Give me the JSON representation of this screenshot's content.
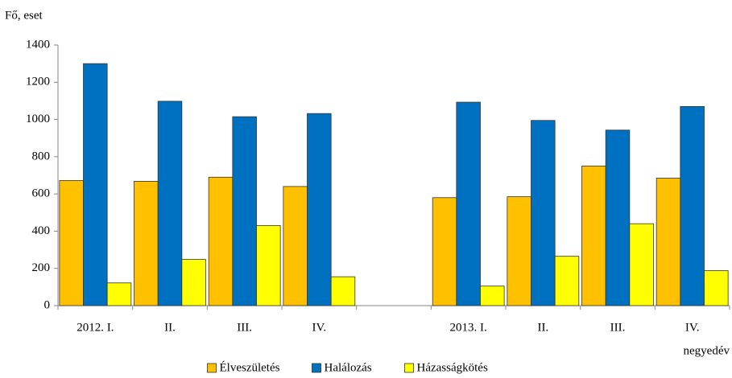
{
  "chart_data": {
    "type": "bar",
    "ylabel": "Fő, eset",
    "xlabel": "negyedév",
    "categories": [
      "2012. I.",
      "II.",
      "III.",
      "IV.",
      null,
      "2013. I.",
      "II.",
      "III.",
      "IV."
    ],
    "series": [
      {
        "name": "Élveszületés",
        "color": "#FFC000",
        "values": [
          672,
          668,
          690,
          640,
          null,
          580,
          585,
          750,
          685
        ]
      },
      {
        "name": "Halálozás",
        "color": "#0070C0",
        "values": [
          1300,
          1098,
          1015,
          1032,
          null,
          1093,
          995,
          943,
          1070
        ]
      },
      {
        "name": "Házasságkötés",
        "color": "#FFFF00",
        "values": [
          122,
          248,
          430,
          155,
          null,
          105,
          265,
          440,
          188
        ]
      }
    ],
    "ylim": [
      0,
      1400
    ],
    "yticks": [
      0,
      200,
      400,
      600,
      800,
      1000,
      1200,
      1400
    ],
    "grid": false
  }
}
